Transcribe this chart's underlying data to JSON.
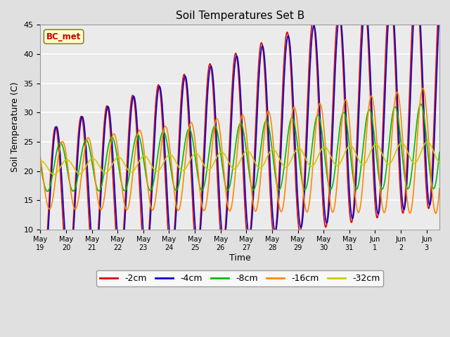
{
  "title": "Soil Temperatures Set B",
  "xlabel": "Time",
  "ylabel": "Soil Temperature (C)",
  "ylim": [
    10,
    45
  ],
  "annotation": "BC_met",
  "legend_labels": [
    "-2cm",
    "-4cm",
    "-8cm",
    "-16cm",
    "-32cm"
  ],
  "line_colors": [
    "#dd0000",
    "#0000cc",
    "#00bb00",
    "#ff8800",
    "#cccc00"
  ],
  "line_widths": [
    1.2,
    1.2,
    1.2,
    1.2,
    1.2
  ],
  "fig_bg": "#e0e0e0",
  "plot_bg": "#ebebeb",
  "grid_color": "#ffffff",
  "tick_labels": [
    "May 19",
    "May 20",
    "May 21",
    "May 22",
    "May 23",
    "May 24",
    "May 25",
    "May 26",
    "May 27",
    "May 28",
    "May 29",
    "May 30",
    "May 31",
    "Jun 1",
    "Jun 2",
    "Jun 3"
  ],
  "yticks": [
    10,
    15,
    20,
    25,
    30,
    35,
    40,
    45
  ]
}
